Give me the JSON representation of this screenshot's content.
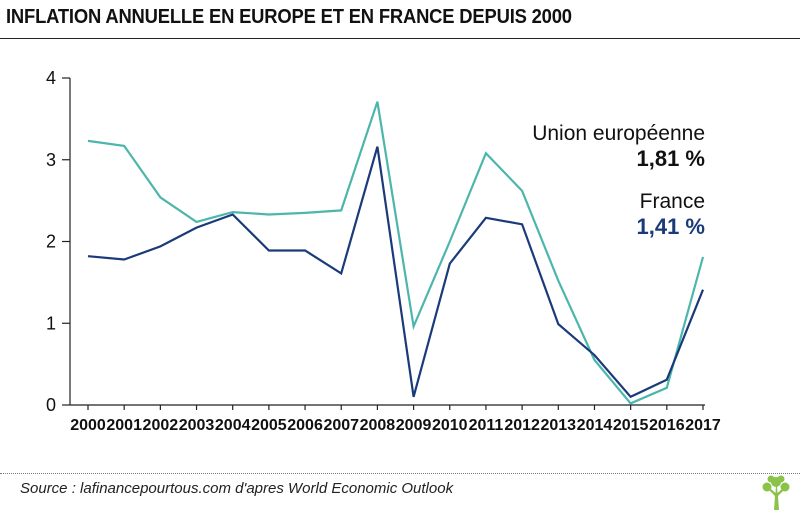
{
  "title": "INFLATION ANNUELLE EN EUROPE ET EN FRANCE DEPUIS 2000",
  "source": "Source : lafinancepourtous.com d'apres World Economic Outlook",
  "logo_icon": "tree-logo-icon",
  "colors": {
    "eu": "#4db6ac",
    "france": "#1a3a7a",
    "axis": "#222222",
    "logo": "#8bc34a"
  },
  "chart_data": {
    "type": "line",
    "title": "INFLATION ANNUELLE EN EUROPE ET EN FRANCE DEPUIS 2000",
    "xlabel": "",
    "ylabel": "",
    "ylim": [
      0,
      4
    ],
    "yticks": [
      "0",
      "1",
      "2",
      "3",
      "4"
    ],
    "grid": false,
    "categories": [
      "2000",
      "2001",
      "2002",
      "2003",
      "2004",
      "2005",
      "2006",
      "2007",
      "2008",
      "2009",
      "2010",
      "2011",
      "2012",
      "2013",
      "2014",
      "2015",
      "2016",
      "2017"
    ],
    "series": [
      {
        "name": "Union européenne",
        "label_value": "1,81 %",
        "values": [
          3.23,
          3.17,
          2.54,
          2.24,
          2.36,
          2.33,
          2.35,
          2.38,
          3.71,
          0.96,
          2.0,
          3.08,
          2.62,
          1.52,
          0.55,
          0.02,
          0.21,
          1.81
        ]
      },
      {
        "name": "France",
        "label_value": "1,41 %",
        "values": [
          1.82,
          1.78,
          1.94,
          2.17,
          2.33,
          1.89,
          1.89,
          1.61,
          3.16,
          0.1,
          1.73,
          2.29,
          2.21,
          0.99,
          0.61,
          0.1,
          0.31,
          1.41
        ]
      }
    ]
  }
}
